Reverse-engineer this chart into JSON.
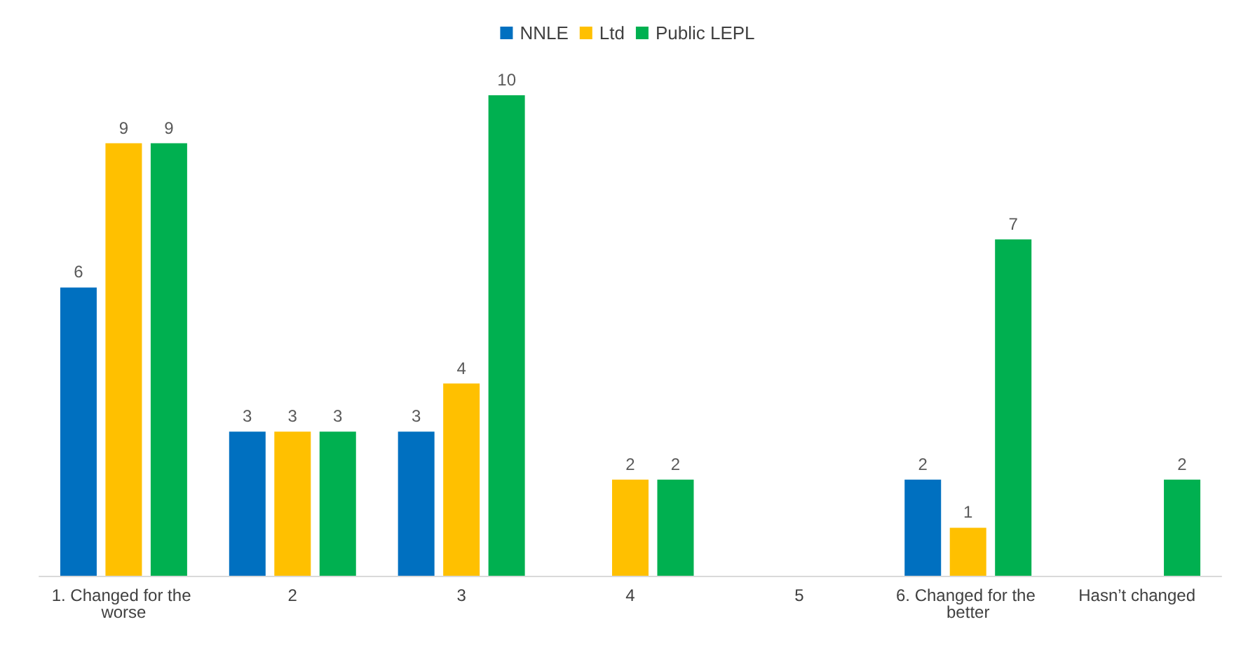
{
  "chart_data": {
    "type": "bar",
    "categories": [
      "1. Changed for the worse",
      "2",
      "3",
      "4",
      "5",
      "6. Changed for the better",
      "Hasn’t changed"
    ],
    "series": [
      {
        "name": "NNLE",
        "color": "#0070c0",
        "values": [
          6,
          3,
          3,
          null,
          null,
          2,
          null
        ]
      },
      {
        "name": "Ltd",
        "color": "#ffc000",
        "values": [
          9,
          3,
          4,
          2,
          null,
          1,
          null
        ]
      },
      {
        "name": "Public LEPL",
        "color": "#00b050",
        "values": [
          9,
          3,
          10,
          2,
          null,
          7,
          2
        ]
      }
    ],
    "data_labels": true,
    "legend": "top"
  }
}
